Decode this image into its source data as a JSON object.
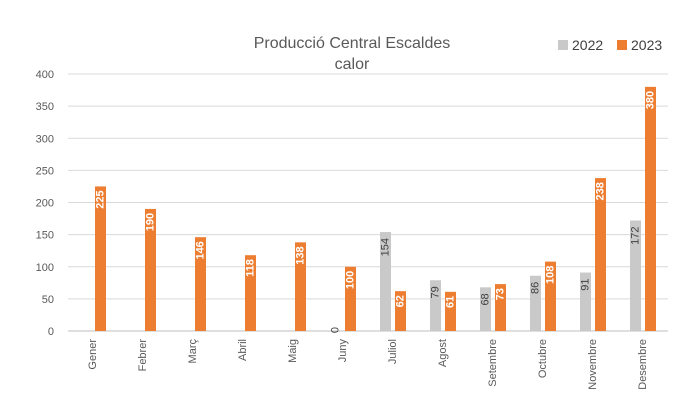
{
  "chart_data": {
    "type": "bar",
    "title_lines": [
      "Producció Central Escaldes",
      "calor"
    ],
    "categories": [
      "Gener",
      "Febrer",
      "Març",
      "Abril",
      "Maig",
      "Juny",
      "Juliol",
      "Agost",
      "Setembre",
      "Octubre",
      "Novembre",
      "Desembre"
    ],
    "series": [
      {
        "name": "2022",
        "color": "#c9c9c9",
        "values": [
          null,
          null,
          null,
          null,
          null,
          0,
          154,
          79,
          68,
          86,
          91,
          172
        ],
        "labels": [
          "",
          "",
          "",
          "",
          "",
          "0",
          "154",
          "79",
          "68",
          "86",
          "91",
          "172"
        ]
      },
      {
        "name": "2023",
        "color": "#ed7d31",
        "values": [
          225,
          190,
          146,
          118,
          138,
          100,
          62,
          61,
          73,
          108,
          238,
          380
        ],
        "labels": [
          "225",
          "190",
          "146",
          "118",
          "138",
          "100",
          "62",
          "61",
          "73",
          "108",
          "238",
          "380"
        ]
      }
    ],
    "ylim": [
      0,
      400
    ],
    "yticks": [
      "0",
      "50",
      "100",
      "150",
      "200",
      "250",
      "300",
      "350",
      "400"
    ],
    "ytick_values": [
      0,
      50,
      100,
      150,
      200,
      250,
      300,
      350,
      400
    ],
    "xlabel": "",
    "ylabel": "",
    "grid": true,
    "legend_position": "top-right"
  }
}
